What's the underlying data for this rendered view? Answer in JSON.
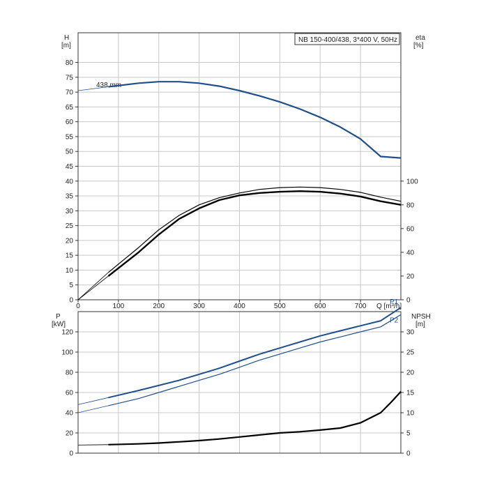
{
  "colors": {
    "head_curve": "#1f4e8c",
    "power_curve": "#1f4e8c",
    "efficiency_curve": "#000000",
    "npsh_curve": "#000000",
    "grid": "#c8c8c8"
  },
  "chart_data": [
    {
      "type": "line",
      "title": "NB 150-400/438, 3*400 V, 50Hz",
      "xlabel": "Q [m³/h]",
      "ylabel": "H\n[m]",
      "ylabel_right": "eta\n[%]",
      "xlim": [
        0,
        800
      ],
      "ylim": [
        0,
        90
      ],
      "ylim_right": [
        0,
        225
      ],
      "x_ticks": [
        0,
        100,
        200,
        300,
        400,
        500,
        600,
        700
      ],
      "y_ticks": [
        0,
        5,
        10,
        15,
        20,
        25,
        30,
        35,
        40,
        45,
        50,
        55,
        60,
        65,
        70,
        75,
        80
      ],
      "y_ticks_right": [
        0,
        20,
        40,
        60,
        80,
        100
      ],
      "grid": true,
      "annotation": "438 mm",
      "series": [
        {
          "axis": "left",
          "x": [
            0,
            75,
            150,
            200,
            250,
            300,
            350,
            400,
            450,
            500,
            550,
            600,
            650,
            700,
            750,
            800
          ],
          "y": [
            70.5,
            71.8,
            73.0,
            73.5,
            73.5,
            73.0,
            72.0,
            70.5,
            68.7,
            66.7,
            64.3,
            61.5,
            58.2,
            54.2,
            48.3,
            47.8
          ],
          "color": "#1f4e8c"
        },
        {
          "axis": "right",
          "x": [
            0,
            75,
            150,
            200,
            250,
            300,
            350,
            400,
            450,
            500,
            550,
            600,
            650,
            700,
            750,
            800
          ],
          "y": [
            0,
            20,
            40,
            55,
            68,
            77,
            84,
            88,
            90,
            91,
            91.5,
            91,
            89.5,
            87,
            83,
            80
          ],
          "color": "#000000"
        },
        {
          "axis": "right",
          "x": [
            0,
            75,
            150,
            200,
            250,
            300,
            350,
            400,
            450,
            500,
            550,
            600,
            650,
            700,
            750,
            800
          ],
          "y": [
            0,
            23,
            44,
            59,
            71,
            80,
            86,
            90,
            93,
            94.5,
            95,
            94.5,
            93,
            90.5,
            86.5,
            83
          ],
          "color": "#000000"
        }
      ]
    },
    {
      "type": "line",
      "title": "",
      "xlabel": "",
      "ylabel": "P\n[kW]",
      "ylabel_right": "NPSH\n[m]",
      "xlim": [
        0,
        800
      ],
      "ylim": [
        0,
        140
      ],
      "ylim_right": [
        0,
        35
      ],
      "y_ticks": [
        0,
        20,
        40,
        60,
        80,
        100,
        120
      ],
      "y_ticks_right": [
        0,
        5,
        10,
        15,
        20,
        25,
        30
      ],
      "grid": true,
      "series": [
        {
          "name": "P1",
          "axis": "left",
          "x": [
            0,
            75,
            150,
            200,
            250,
            300,
            350,
            400,
            450,
            500,
            550,
            600,
            650,
            700,
            750,
            800
          ],
          "y": [
            48,
            55,
            62,
            67,
            72,
            78,
            84,
            91,
            98,
            104,
            110,
            116,
            121,
            126,
            131,
            144
          ],
          "color": "#1f4e8c"
        },
        {
          "name": "P2",
          "axis": "left",
          "x": [
            0,
            75,
            150,
            200,
            250,
            300,
            350,
            400,
            450,
            500,
            550,
            600,
            650,
            700,
            750,
            800
          ],
          "y": [
            40,
            47,
            54,
            60,
            66,
            72,
            78,
            85,
            92,
            98,
            104,
            110,
            115,
            120,
            125,
            137
          ],
          "color": "#1f4e8c"
        },
        {
          "name": "NPSH",
          "axis": "right",
          "x": [
            0,
            75,
            150,
            200,
            250,
            300,
            350,
            400,
            450,
            500,
            550,
            600,
            650,
            700,
            750,
            775,
            800
          ],
          "y": [
            2.0,
            2.1,
            2.3,
            2.5,
            2.8,
            3.1,
            3.5,
            4.0,
            4.5,
            5.0,
            5.3,
            5.7,
            6.2,
            7.5,
            10.0,
            12.5,
            15.2
          ],
          "color": "#000000"
        }
      ]
    }
  ]
}
